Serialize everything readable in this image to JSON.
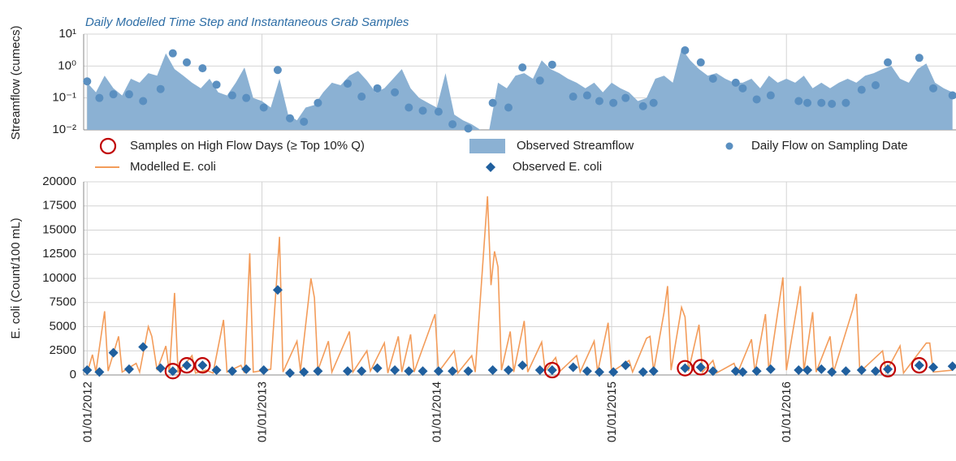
{
  "chart_data": [
    {
      "type": "area",
      "title": "Daily Modelled Time Step and Instantaneous Grab Samples",
      "ylabel": "Streamflow (cumecs)",
      "xlim": [
        2011.98,
        2016.97
      ],
      "ylim": [
        0.01,
        10
      ],
      "log_y": true,
      "grid": true,
      "xticks": [
        2012,
        2013,
        2014,
        2015,
        2016
      ],
      "yticks": [
        {
          "value": 0.01,
          "label": "10⁻²"
        },
        {
          "value": 0.1,
          "label": "10⁻¹"
        },
        {
          "value": 1,
          "label": "10⁰"
        },
        {
          "value": 10,
          "label": "10¹"
        }
      ],
      "series": [
        {
          "name": "Observed Streamflow",
          "type": "area",
          "color": "#8bb1d3",
          "x": [
            2012,
            2012.05,
            2012.1,
            2012.15,
            2012.2,
            2012.25,
            2012.3,
            2012.35,
            2012.4,
            2012.45,
            2012.5,
            2012.55,
            2012.6,
            2012.65,
            2012.7,
            2012.75,
            2012.8,
            2012.85,
            2012.9,
            2012.95,
            2013,
            2013.05,
            2013.1,
            2013.15,
            2013.2,
            2013.25,
            2013.3,
            2013.35,
            2013.4,
            2013.45,
            2013.5,
            2013.55,
            2013.6,
            2013.65,
            2013.7,
            2013.75,
            2013.8,
            2013.85,
            2013.9,
            2013.95,
            2014,
            2014.05,
            2014.1,
            2014.15,
            2014.2,
            2014.25,
            2014.3,
            2014.35,
            2014.4,
            2014.45,
            2014.5,
            2014.55,
            2014.6,
            2014.65,
            2014.7,
            2014.75,
            2014.8,
            2014.85,
            2014.9,
            2014.95,
            2015,
            2015.05,
            2015.1,
            2015.15,
            2015.2,
            2015.25,
            2015.3,
            2015.35,
            2015.4,
            2015.45,
            2015.5,
            2015.55,
            2015.6,
            2015.65,
            2015.7,
            2015.75,
            2015.8,
            2015.85,
            2015.9,
            2015.95,
            2016,
            2016.05,
            2016.1,
            2016.15,
            2016.2,
            2016.25,
            2016.3,
            2016.35,
            2016.4,
            2016.45,
            2016.5,
            2016.55,
            2016.6,
            2016.65,
            2016.7,
            2016.75,
            2016.8,
            2016.85,
            2016.9,
            2016.95
          ],
          "values": [
            0.3,
            0.15,
            0.5,
            0.2,
            0.12,
            0.4,
            0.3,
            0.6,
            0.5,
            2.5,
            0.8,
            0.5,
            0.3,
            0.2,
            0.4,
            0.15,
            0.12,
            0.3,
            0.9,
            0.1,
            0.08,
            0.05,
            0.4,
            0.03,
            0.02,
            0.05,
            0.06,
            0.15,
            0.3,
            0.25,
            0.5,
            0.7,
            0.35,
            0.15,
            0.2,
            0.4,
            0.8,
            0.2,
            0.1,
            0.07,
            0.05,
            0.6,
            0.03,
            0.02,
            0.015,
            0.01,
            0.01,
            0.3,
            0.2,
            0.5,
            0.6,
            0.4,
            1.5,
            0.8,
            0.6,
            0.4,
            0.3,
            0.2,
            0.3,
            0.15,
            0.3,
            0.2,
            0.15,
            0.08,
            0.1,
            0.4,
            0.5,
            0.3,
            3.5,
            1.5,
            0.8,
            0.5,
            0.6,
            0.4,
            0.3,
            0.3,
            0.4,
            0.2,
            0.5,
            0.3,
            0.4,
            0.3,
            0.5,
            0.2,
            0.3,
            0.2,
            0.3,
            0.4,
            0.3,
            0.5,
            0.6,
            0.8,
            1.0,
            0.4,
            0.3,
            0.8,
            1.2,
            0.3,
            0.2,
            0.15
          ]
        },
        {
          "name": "Daily Flow on Sampling Date",
          "type": "scatter",
          "marker": "dot",
          "color": "#5a8fc0",
          "x": [
            2012,
            2012.07,
            2012.15,
            2012.24,
            2012.32,
            2012.42,
            2012.49,
            2012.57,
            2012.66,
            2012.74,
            2012.83,
            2012.91,
            2013.01,
            2013.09,
            2013.16,
            2013.24,
            2013.32,
            2013.49,
            2013.57,
            2013.66,
            2013.76,
            2013.84,
            2013.92,
            2014.01,
            2014.09,
            2014.18,
            2014.32,
            2014.41,
            2014.49,
            2014.59,
            2014.66,
            2014.78,
            2014.86,
            2014.93,
            2015.01,
            2015.08,
            2015.18,
            2015.24,
            2015.42,
            2015.51,
            2015.58,
            2015.71,
            2015.75,
            2015.83,
            2015.91,
            2016.07,
            2016.12,
            2016.2,
            2016.26,
            2016.34,
            2016.43,
            2016.51,
            2016.58,
            2016.76,
            2016.84,
            2016.95
          ],
          "values": [
            0.33,
            0.1,
            0.13,
            0.13,
            0.08,
            0.19,
            2.5,
            1.3,
            0.85,
            0.26,
            0.12,
            0.1,
            0.05,
            0.75,
            0.023,
            0.018,
            0.07,
            0.28,
            0.11,
            0.2,
            0.15,
            0.05,
            0.04,
            0.037,
            0.015,
            0.011,
            0.07,
            0.05,
            0.9,
            0.35,
            1.1,
            0.11,
            0.12,
            0.08,
            0.07,
            0.1,
            0.055,
            0.07,
            3.1,
            1.3,
            0.4,
            0.3,
            0.2,
            0.09,
            0.12,
            0.08,
            0.07,
            0.07,
            0.065,
            0.07,
            0.18,
            0.25,
            1.3,
            1.8,
            0.2,
            0.12
          ]
        }
      ]
    },
    {
      "type": "line",
      "ylabel": "E. coli (Count/100 mL)",
      "xlim": [
        2011.98,
        2016.97
      ],
      "ylim": [
        0,
        20000
      ],
      "grid": true,
      "xticks": [
        {
          "value": 2012,
          "label": "01/01/2012"
        },
        {
          "value": 2013,
          "label": "01/01/2013"
        },
        {
          "value": 2014,
          "label": "01/01/2014"
        },
        {
          "value": 2015,
          "label": "01/01/2015"
        },
        {
          "value": 2016,
          "label": "01/01/2016"
        }
      ],
      "yticks": [
        0,
        2500,
        5000,
        7500,
        10000,
        12500,
        15000,
        17500,
        20000
      ],
      "series": [
        {
          "name": "Samples on High Flow Days (≥ Top 10% Q)",
          "type": "scatter",
          "marker": "ring",
          "color": "#c00000",
          "x": [
            2012.49,
            2012.57,
            2012.66,
            2014.66,
            2015.42,
            2015.51,
            2016.58,
            2016.76
          ],
          "values": [
            400,
            1000,
            1000,
            500,
            700,
            800,
            600,
            1000
          ]
        },
        {
          "name": "Modelled E. coli",
          "type": "line",
          "color": "#f39c5a",
          "x": [
            2012,
            2012.03,
            2012.05,
            2012.1,
            2012.12,
            2012.18,
            2012.2,
            2012.28,
            2012.3,
            2012.35,
            2012.37,
            2012.4,
            2012.45,
            2012.47,
            2012.5,
            2012.52,
            2012.6,
            2012.62,
            2012.68,
            2012.72,
            2012.78,
            2012.8,
            2012.88,
            2012.9,
            2012.93,
            2012.95,
            2013.05,
            2013.1,
            2013.12,
            2013.2,
            2013.22,
            2013.28,
            2013.3,
            2013.32,
            2013.38,
            2013.4,
            2013.5,
            2013.52,
            2013.6,
            2013.62,
            2013.7,
            2013.72,
            2013.78,
            2013.8,
            2013.85,
            2013.87,
            2013.99,
            2014.01,
            2014.1,
            2014.12,
            2014.2,
            2014.22,
            2014.29,
            2014.31,
            2014.33,
            2014.35,
            2014.37,
            2014.42,
            2014.44,
            2014.5,
            2014.52,
            2014.6,
            2014.62,
            2014.68,
            2014.7,
            2014.8,
            2014.82,
            2014.9,
            2014.92,
            2014.98,
            2015,
            2015.1,
            2015.12,
            2015.2,
            2015.22,
            2015.24,
            2015.3,
            2015.32,
            2015.34,
            2015.4,
            2015.42,
            2015.44,
            2015.5,
            2015.52,
            2015.58,
            2015.6,
            2015.7,
            2015.72,
            2015.8,
            2015.82,
            2015.88,
            2015.9,
            2015.98,
            2016,
            2016.08,
            2016.1,
            2016.15,
            2016.17,
            2016.25,
            2016.27,
            2016.38,
            2016.4,
            2016.42,
            2016.55,
            2016.57,
            2016.65,
            2016.67,
            2016.8,
            2016.82,
            2016.84,
            2016.95
          ],
          "values": [
            200,
            2100,
            300,
            6600,
            400,
            4000,
            300,
            1200,
            300,
            5000,
            4000,
            500,
            3000,
            200,
            8500,
            300,
            2000,
            200,
            500,
            200,
            5700,
            300,
            1000,
            200,
            12600,
            300,
            600,
            14300,
            300,
            3500,
            400,
            10000,
            8000,
            500,
            3500,
            300,
            4500,
            300,
            2500,
            400,
            3300,
            200,
            4000,
            300,
            4200,
            300,
            6300,
            300,
            2500,
            200,
            2000,
            300,
            18500,
            9300,
            12800,
            11200,
            500,
            4500,
            300,
            5600,
            300,
            3400,
            400,
            1800,
            300,
            2000,
            300,
            3500,
            300,
            5400,
            300,
            1500,
            300,
            3800,
            4000,
            400,
            6500,
            9200,
            500,
            7000,
            6000,
            400,
            5200,
            300,
            1500,
            200,
            1200,
            200,
            3700,
            300,
            6300,
            300,
            10100,
            500,
            9200,
            400,
            6500,
            300,
            4000,
            300,
            6800,
            8400,
            300,
            2500,
            300,
            3000,
            200,
            3300,
            3300,
            300,
            500
          ]
        },
        {
          "name": "Observed E. coli",
          "type": "scatter",
          "marker": "diamond",
          "color": "#1f5f9e",
          "x": [
            2012,
            2012.07,
            2012.15,
            2012.24,
            2012.32,
            2012.42,
            2012.49,
            2012.57,
            2012.66,
            2012.74,
            2012.83,
            2012.91,
            2013.01,
            2013.09,
            2013.16,
            2013.24,
            2013.32,
            2013.49,
            2013.57,
            2013.66,
            2013.76,
            2013.84,
            2013.92,
            2014.01,
            2014.09,
            2014.18,
            2014.32,
            2014.41,
            2014.49,
            2014.59,
            2014.66,
            2014.78,
            2014.86,
            2014.93,
            2015.01,
            2015.08,
            2015.18,
            2015.24,
            2015.42,
            2015.51,
            2015.58,
            2015.71,
            2015.75,
            2015.83,
            2015.91,
            2016.07,
            2016.12,
            2016.2,
            2016.26,
            2016.34,
            2016.43,
            2016.51,
            2016.58,
            2016.76,
            2016.84,
            2016.95
          ],
          "values": [
            500,
            300,
            2300,
            600,
            2900,
            700,
            400,
            1000,
            1000,
            500,
            400,
            600,
            500,
            8800,
            200,
            300,
            400,
            400,
            400,
            700,
            500,
            400,
            400,
            400,
            400,
            400,
            500,
            500,
            1000,
            500,
            500,
            800,
            400,
            300,
            300,
            1000,
            300,
            400,
            700,
            800,
            400,
            400,
            300,
            400,
            600,
            500,
            500,
            600,
            300,
            400,
            500,
            400,
            600,
            1000,
            800,
            900
          ]
        }
      ]
    }
  ]
}
